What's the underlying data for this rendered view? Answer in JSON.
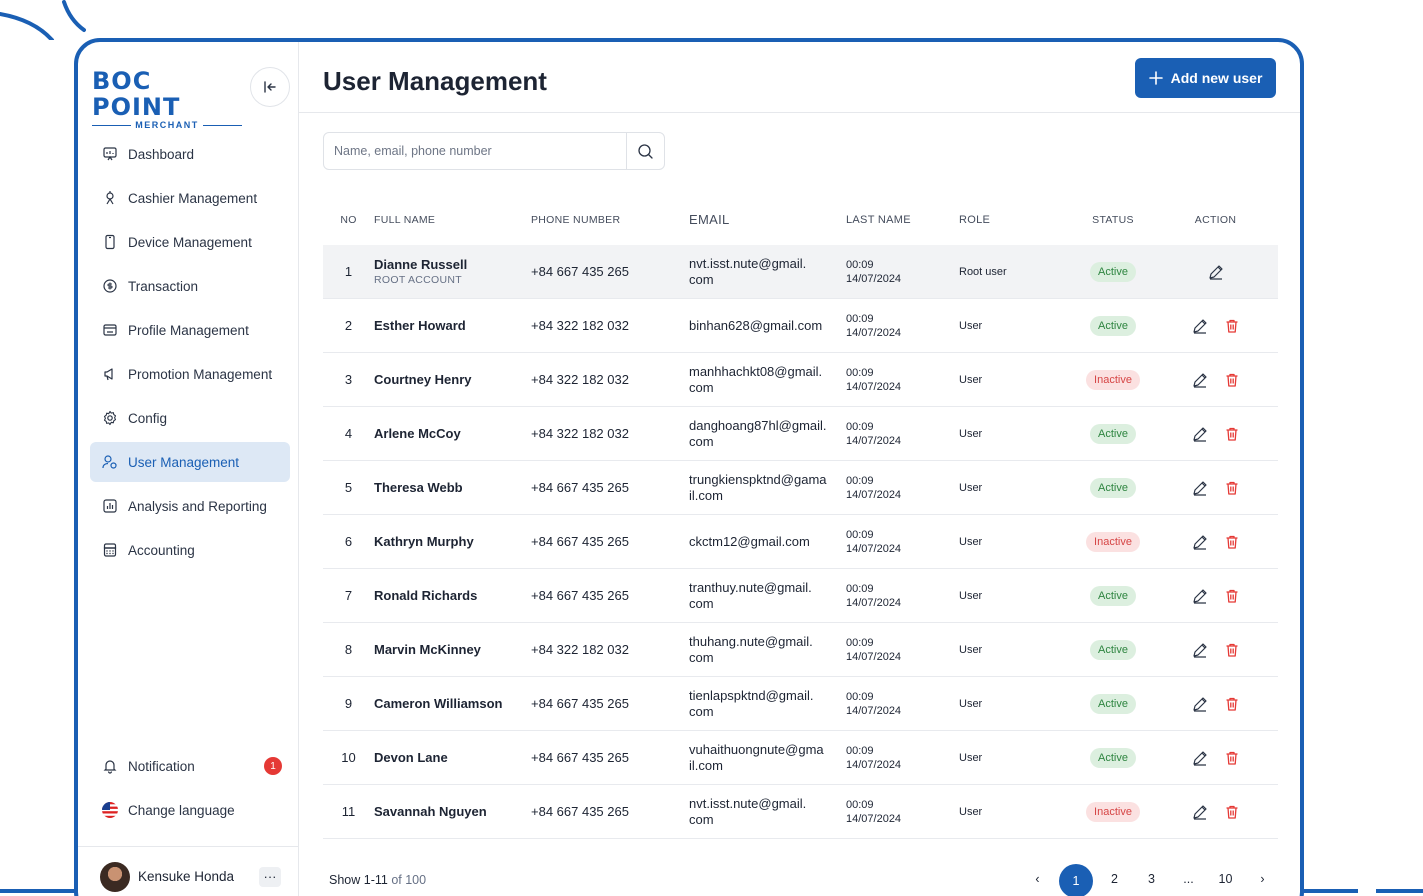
{
  "brand": {
    "name": "BOC POINT",
    "sub": "MERCHANT"
  },
  "colors": {
    "primary": "#1a5fb4",
    "active_bg": "#dcefdf",
    "active_fg": "#2e8540",
    "inactive_bg": "#fbe1e1",
    "inactive_fg": "#d64545",
    "badge": "#e53935"
  },
  "sidebar": {
    "items": [
      {
        "label": "Dashboard",
        "icon": "dashboard-icon"
      },
      {
        "label": "Cashier Management",
        "icon": "cashier-icon"
      },
      {
        "label": "Device Management",
        "icon": "device-icon"
      },
      {
        "label": "Transaction",
        "icon": "transaction-icon"
      },
      {
        "label": "Profile Management",
        "icon": "profile-icon"
      },
      {
        "label": "Promotion Management",
        "icon": "promotion-icon"
      },
      {
        "label": "Config",
        "icon": "gear-icon"
      },
      {
        "label": "User Management",
        "icon": "users-icon",
        "active": true
      },
      {
        "label": "Analysis and Reporting",
        "icon": "chart-icon"
      },
      {
        "label": "Accounting",
        "icon": "calculator-icon"
      }
    ],
    "notification": {
      "label": "Notification",
      "count": "1"
    },
    "language": {
      "label": "Change language"
    },
    "user": {
      "name": "Kensuke Honda",
      "more": "···"
    }
  },
  "header": {
    "title": "User Management",
    "add_label": "Add new user"
  },
  "search": {
    "placeholder": "Name, email, phone number"
  },
  "table": {
    "columns": {
      "no": "NO",
      "name": "FULL NAME",
      "phone": "PHONE NUMBER",
      "email": "EMAIL",
      "last": "LAST NAME",
      "role": "ROLE",
      "status": "STATUS",
      "action": "ACTION"
    },
    "rows": [
      {
        "no": "1",
        "name": "Dianne Russell",
        "sub": "ROOT ACCOUNT",
        "phone": "+84 667 435 265",
        "email1": "nvt.isst.nute@gmail.",
        "email2": "com",
        "time": "00:09",
        "date": "14/07/2024",
        "role": "Root user",
        "status": "Active",
        "deletable": false
      },
      {
        "no": "2",
        "name": "Esther Howard",
        "sub": "",
        "phone": "+84 322 182 032",
        "email1": "binhan628@gmail.com",
        "email2": "",
        "time": "00:09",
        "date": "14/07/2024",
        "role": "User",
        "status": "Active",
        "deletable": true
      },
      {
        "no": "3",
        "name": "Courtney Henry",
        "sub": "",
        "phone": "+84 322 182 032",
        "email1": "manhhachkt08@gmail.",
        "email2": "com",
        "time": "00:09",
        "date": "14/07/2024",
        "role": "User",
        "status": "Inactive",
        "deletable": true
      },
      {
        "no": "4",
        "name": "Arlene McCoy",
        "sub": "",
        "phone": "+84 322 182 032",
        "email1": "danghoang87hl@gmail.",
        "email2": "com",
        "time": "00:09",
        "date": "14/07/2024",
        "role": "User",
        "status": "Active",
        "deletable": true
      },
      {
        "no": "5",
        "name": "Theresa Webb",
        "sub": "",
        "phone": "+84 667 435 265",
        "email1": "trungkienspktnd@gama",
        "email2": "il.com",
        "time": "00:09",
        "date": "14/07/2024",
        "role": "User",
        "status": "Active",
        "deletable": true
      },
      {
        "no": "6",
        "name": "Kathryn Murphy",
        "sub": "",
        "phone": "+84 667 435 265",
        "email1": "ckctm12@gmail.com",
        "email2": "",
        "time": "00:09",
        "date": "14/07/2024",
        "role": "User",
        "status": "Inactive",
        "deletable": true
      },
      {
        "no": "7",
        "name": "Ronald Richards",
        "sub": "",
        "phone": "+84 667 435 265",
        "email1": "tranthuy.nute@gmail.",
        "email2": "com",
        "time": "00:09",
        "date": "14/07/2024",
        "role": "User",
        "status": "Active",
        "deletable": true
      },
      {
        "no": "8",
        "name": "Marvin McKinney",
        "sub": "",
        "phone": "+84 322 182 032",
        "email1": "thuhang.nute@gmail.",
        "email2": "com",
        "time": "00:09",
        "date": "14/07/2024",
        "role": "User",
        "status": "Active",
        "deletable": true
      },
      {
        "no": "9",
        "name": "Cameron Williamson",
        "sub": "",
        "phone": "+84 667 435 265",
        "email1": "tienlapspktnd@gmail.",
        "email2": "com",
        "time": "00:09",
        "date": "14/07/2024",
        "role": "User",
        "status": "Active",
        "deletable": true
      },
      {
        "no": "10",
        "name": "Devon Lane",
        "sub": "",
        "phone": "+84 667 435 265",
        "email1": "vuhaithuongnute@gma",
        "email2": "il.com",
        "time": "00:09",
        "date": "14/07/2024",
        "role": "User",
        "status": "Active",
        "deletable": true
      },
      {
        "no": "11",
        "name": "Savannah Nguyen",
        "sub": "",
        "phone": "+84 667 435 265",
        "email1": "nvt.isst.nute@gmail.",
        "email2": "com",
        "time": "00:09",
        "date": "14/07/2024",
        "role": "User",
        "status": "Inactive",
        "deletable": true
      }
    ]
  },
  "footer": {
    "show_prefix": "Show 1-11",
    "show_suffix": " of 100",
    "pages": [
      "‹",
      "1",
      "2",
      "3",
      "...",
      "10",
      "›"
    ],
    "current": "1"
  }
}
